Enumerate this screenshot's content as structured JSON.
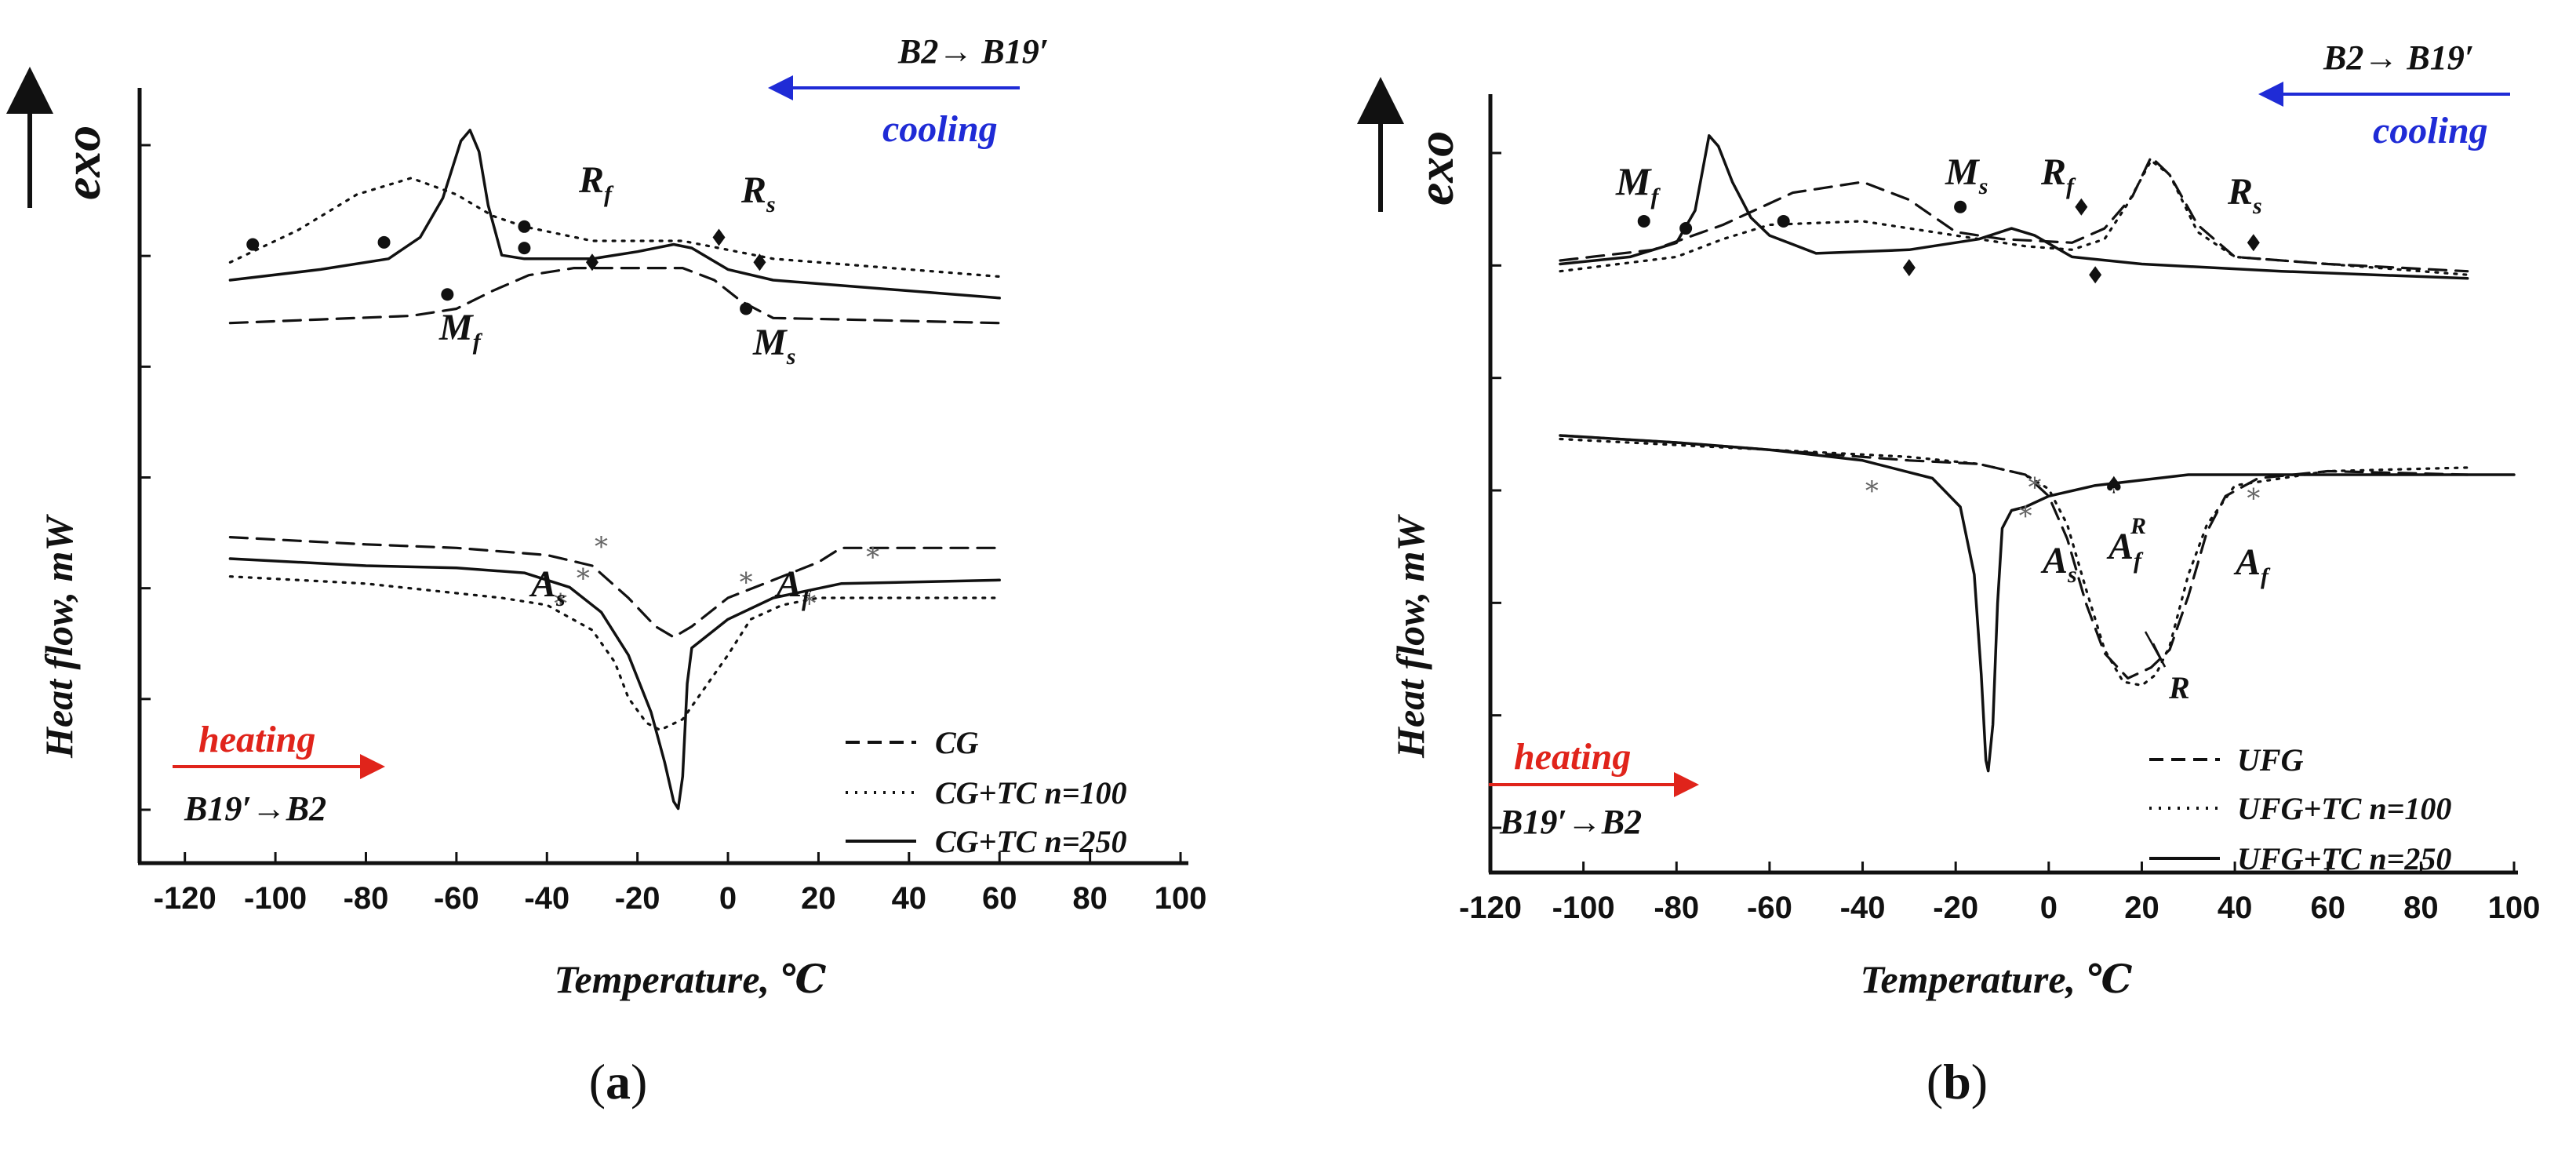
{
  "chart_data": [
    {
      "type": "line",
      "panel": "a",
      "caption_letter": "a",
      "title": "",
      "xlabel": "Temperature, ℃",
      "ylabel": "Heat flow, mW",
      "exo_label": "exo",
      "xlim": [
        -130,
        100
      ],
      "xticks": [
        -120,
        -100,
        -80,
        -60,
        -40,
        -20,
        0,
        20,
        40,
        60,
        80,
        100
      ],
      "ytick_count": 7,
      "ylim": [
        0,
        10
      ],
      "grid": false,
      "legend_position": "bottom-right",
      "cooling_arrow": {
        "label": "B2→ B19′",
        "word": "cooling",
        "color": "#1f2bd6",
        "direction": "left"
      },
      "heating_arrow": {
        "label": "B19′→B2",
        "word": "heating",
        "color": "#e0241b",
        "direction": "right"
      },
      "series": [
        {
          "name": "CG",
          "style": "dashed",
          "cooling": [
            [
              -110,
              6.85
            ],
            [
              -90,
              6.9
            ],
            [
              -70,
              6.95
            ],
            [
              -60,
              7.05
            ],
            [
              -52,
              7.3
            ],
            [
              -44,
              7.52
            ],
            [
              -34,
              7.62
            ],
            [
              -20,
              7.62
            ],
            [
              -10,
              7.62
            ],
            [
              -3,
              7.45
            ],
            [
              3,
              7.15
            ],
            [
              10,
              6.92
            ],
            [
              25,
              6.9
            ],
            [
              60,
              6.85
            ]
          ],
          "heating": [
            [
              -110,
              3.85
            ],
            [
              -80,
              3.75
            ],
            [
              -60,
              3.7
            ],
            [
              -40,
              3.6
            ],
            [
              -30,
              3.45
            ],
            [
              -22,
              3.0
            ],
            [
              -16,
              2.6
            ],
            [
              -12,
              2.45
            ],
            [
              -8,
              2.6
            ],
            [
              0,
              3.0
            ],
            [
              10,
              3.25
            ],
            [
              20,
              3.5
            ],
            [
              25,
              3.7
            ],
            [
              35,
              3.7
            ],
            [
              60,
              3.7
            ]
          ]
        },
        {
          "name": "CG+TC n=100",
          "style": "dotted",
          "cooling": [
            [
              -110,
              7.7
            ],
            [
              -95,
              8.15
            ],
            [
              -82,
              8.65
            ],
            [
              -70,
              8.88
            ],
            [
              -60,
              8.65
            ],
            [
              -52,
              8.35
            ],
            [
              -45,
              8.2
            ],
            [
              -30,
              8.0
            ],
            [
              -10,
              8.0
            ],
            [
              10,
              7.75
            ],
            [
              40,
              7.6
            ],
            [
              60,
              7.5
            ]
          ],
          "heating": [
            [
              -110,
              3.3
            ],
            [
              -80,
              3.2
            ],
            [
              -50,
              3.0
            ],
            [
              -40,
              2.9
            ],
            [
              -30,
              2.55
            ],
            [
              -25,
              2.1
            ],
            [
              -22,
              1.6
            ],
            [
              -18,
              1.25
            ],
            [
              -15,
              1.15
            ],
            [
              -10,
              1.3
            ],
            [
              0,
              2.2
            ],
            [
              5,
              2.7
            ],
            [
              12,
              2.9
            ],
            [
              20,
              3.0
            ],
            [
              60,
              3.0
            ]
          ]
        },
        {
          "name": "CG+TC n=250",
          "style": "solid",
          "cooling": [
            [
              -110,
              7.45
            ],
            [
              -90,
              7.6
            ],
            [
              -75,
              7.75
            ],
            [
              -68,
              8.05
            ],
            [
              -63,
              8.6
            ],
            [
              -59,
              9.4
            ],
            [
              -57,
              9.55
            ],
            [
              -55,
              9.25
            ],
            [
              -53,
              8.5
            ],
            [
              -50,
              7.8
            ],
            [
              -45,
              7.75
            ],
            [
              -30,
              7.75
            ],
            [
              -20,
              7.85
            ],
            [
              -12,
              7.95
            ],
            [
              -8,
              7.9
            ],
            [
              0,
              7.6
            ],
            [
              10,
              7.45
            ],
            [
              30,
              7.35
            ],
            [
              60,
              7.2
            ]
          ],
          "heating": [
            [
              -110,
              3.55
            ],
            [
              -80,
              3.45
            ],
            [
              -60,
              3.42
            ],
            [
              -45,
              3.35
            ],
            [
              -35,
              3.15
            ],
            [
              -28,
              2.8
            ],
            [
              -22,
              2.2
            ],
            [
              -17,
              1.4
            ],
            [
              -14,
              0.7
            ],
            [
              -12,
              0.15
            ],
            [
              -11,
              0.05
            ],
            [
              -10,
              0.5
            ],
            [
              -9,
              1.8
            ],
            [
              -8,
              2.3
            ],
            [
              0,
              2.7
            ],
            [
              10,
              3.0
            ],
            [
              25,
              3.2
            ],
            [
              60,
              3.25
            ]
          ]
        }
      ],
      "point_labels": [
        {
          "text": "M",
          "sub": "f",
          "near": [
            -62,
            6.4
          ]
        },
        {
          "text": "R",
          "sub": "f",
          "near": [
            -28,
            8.3
          ]
        },
        {
          "text": "R",
          "sub": "s",
          "near": [
            5,
            8.3
          ]
        },
        {
          "text": "M",
          "sub": "s",
          "near": [
            10,
            6.2
          ]
        },
        {
          "text": "A",
          "sub": "s",
          "near": [
            -38,
            2.1
          ]
        },
        {
          "text": "A",
          "sub": "f",
          "near": [
            15,
            2.1
          ]
        }
      ],
      "markers": {
        "dots": [
          [
            -105,
            7.95
          ],
          [
            -76,
            7.98
          ],
          [
            -45,
            8.2
          ],
          [
            -45,
            7.9
          ],
          [
            -62,
            7.25
          ],
          [
            4,
            7.05
          ]
        ],
        "diamonds": [
          [
            -2,
            8.05
          ],
          [
            -30,
            7.7
          ],
          [
            7,
            7.7
          ]
        ],
        "stars": [
          [
            -28,
            3.75
          ],
          [
            -32,
            3.3
          ],
          [
            -37,
            2.95
          ],
          [
            4,
            3.25
          ],
          [
            18,
            2.95
          ],
          [
            32,
            3.6
          ]
        ]
      },
      "legend": [
        "CG",
        "CG+TC n=100",
        "CG+TC n=250"
      ]
    },
    {
      "type": "line",
      "panel": "b",
      "caption_letter": "b",
      "title": "",
      "xlabel": "Temperature, ℃",
      "ylabel": "Heat flow, mW",
      "exo_label": "exo",
      "xlim": [
        -120,
        100
      ],
      "xticks": [
        -120,
        -100,
        -80,
        -60,
        -40,
        -20,
        0,
        20,
        40,
        60,
        80,
        100
      ],
      "ytick_count": 7,
      "ylim": [
        0,
        10
      ],
      "grid": false,
      "legend_position": "bottom-right",
      "cooling_arrow": {
        "label": "B2→ B19′",
        "word": "cooling",
        "color": "#1f2bd6",
        "direction": "left"
      },
      "heating_arrow": {
        "label": "B19′→B2",
        "word": "heating",
        "color": "#e0241b",
        "direction": "right"
      },
      "series": [
        {
          "name": "UFG",
          "style": "dashed",
          "cooling": [
            [
              -105,
              8.0
            ],
            [
              -85,
              8.15
            ],
            [
              -70,
              8.5
            ],
            [
              -55,
              8.95
            ],
            [
              -40,
              9.1
            ],
            [
              -30,
              8.85
            ],
            [
              -20,
              8.4
            ],
            [
              -10,
              8.3
            ],
            [
              5,
              8.25
            ],
            [
              12,
              8.45
            ],
            [
              18,
              8.9
            ],
            [
              22,
              9.45
            ],
            [
              26,
              9.2
            ],
            [
              32,
              8.5
            ],
            [
              40,
              8.05
            ],
            [
              60,
              7.95
            ],
            [
              90,
              7.85
            ]
          ],
          "heating": [
            [
              -105,
              5.55
            ],
            [
              -80,
              5.45
            ],
            [
              -50,
              5.3
            ],
            [
              -30,
              5.2
            ],
            [
              -15,
              5.15
            ],
            [
              -5,
              5.0
            ],
            [
              0,
              4.7
            ],
            [
              4,
              4.1
            ],
            [
              8,
              3.2
            ],
            [
              12,
              2.5
            ],
            [
              17,
              2.15
            ],
            [
              22,
              2.3
            ],
            [
              26,
              2.55
            ],
            [
              30,
              3.3
            ],
            [
              34,
              4.2
            ],
            [
              38,
              4.7
            ],
            [
              45,
              4.95
            ],
            [
              60,
              5.05
            ],
            [
              90,
              5.0
            ]
          ]
        },
        {
          "name": "UFG+TC n=100",
          "style": "dotted",
          "cooling": [
            [
              -105,
              7.85
            ],
            [
              -80,
              8.05
            ],
            [
              -70,
              8.3
            ],
            [
              -60,
              8.5
            ],
            [
              -40,
              8.55
            ],
            [
              -20,
              8.35
            ],
            [
              -5,
              8.2
            ],
            [
              5,
              8.15
            ],
            [
              12,
              8.3
            ],
            [
              17,
              8.8
            ],
            [
              22,
              9.4
            ],
            [
              26,
              9.2
            ],
            [
              32,
              8.4
            ],
            [
              40,
              8.05
            ],
            [
              60,
              7.95
            ],
            [
              90,
              7.8
            ]
          ],
          "heating": [
            [
              -105,
              5.5
            ],
            [
              -60,
              5.35
            ],
            [
              -30,
              5.25
            ],
            [
              -15,
              5.15
            ],
            [
              -5,
              5.0
            ],
            [
              0,
              4.8
            ],
            [
              4,
              4.3
            ],
            [
              8,
              3.4
            ],
            [
              12,
              2.55
            ],
            [
              16,
              2.1
            ],
            [
              20,
              2.05
            ],
            [
              23,
              2.2
            ],
            [
              26,
              2.6
            ],
            [
              30,
              3.6
            ],
            [
              34,
              4.3
            ],
            [
              40,
              4.85
            ],
            [
              60,
              5.05
            ],
            [
              90,
              5.1
            ]
          ]
        },
        {
          "name": "UFG+TC n=250",
          "style": "solid",
          "cooling": [
            [
              -105,
              7.95
            ],
            [
              -90,
              8.05
            ],
            [
              -80,
              8.25
            ],
            [
              -76,
              8.7
            ],
            [
              -73,
              9.75
            ],
            [
              -71,
              9.6
            ],
            [
              -68,
              9.1
            ],
            [
              -64,
              8.6
            ],
            [
              -60,
              8.35
            ],
            [
              -50,
              8.1
            ],
            [
              -30,
              8.15
            ],
            [
              -15,
              8.3
            ],
            [
              -8,
              8.45
            ],
            [
              -3,
              8.35
            ],
            [
              5,
              8.05
            ],
            [
              20,
              7.95
            ],
            [
              50,
              7.85
            ],
            [
              90,
              7.75
            ]
          ],
          "heating": [
            [
              -105,
              5.55
            ],
            [
              -80,
              5.45
            ],
            [
              -60,
              5.35
            ],
            [
              -40,
              5.2
            ],
            [
              -25,
              4.95
            ],
            [
              -19,
              4.55
            ],
            [
              -16,
              3.6
            ],
            [
              -14.5,
              2.2
            ],
            [
              -13.5,
              1.0
            ],
            [
              -13,
              0.85
            ],
            [
              -12,
              1.5
            ],
            [
              -11,
              3.2
            ],
            [
              -10,
              4.25
            ],
            [
              -8,
              4.5
            ],
            [
              -5,
              4.55
            ],
            [
              0,
              4.7
            ],
            [
              10,
              4.85
            ],
            [
              30,
              5.0
            ],
            [
              100,
              5.0
            ]
          ]
        }
      ],
      "point_labels": [
        {
          "text": "M",
          "sub": "f",
          "near": [
            -86,
            9.2
          ]
        },
        {
          "text": "M",
          "sub": "s",
          "near": [
            -17,
            9.4
          ]
        },
        {
          "text": "R",
          "sub": "f",
          "near": [
            -1,
            9.4
          ]
        },
        {
          "text": "R",
          "sub": "s",
          "near": [
            42,
            8.8
          ]
        },
        {
          "text": "A",
          "sub": "s",
          "near": [
            4,
            4.5
          ]
        },
        {
          "text": "A",
          "sub": "f",
          "near": [
            16,
            4.5
          ],
          "sup": "R"
        },
        {
          "text": "A",
          "sub": "f",
          "near": [
            44,
            4.3
          ]
        },
        {
          "text": "R",
          "near": [
            23,
            1.6
          ]
        }
      ],
      "markers": {
        "dots": [
          [
            -87,
            8.55
          ],
          [
            -78,
            8.45
          ],
          [
            -57,
            8.55
          ],
          [
            -19,
            8.75
          ]
        ],
        "diamonds": [
          [
            7,
            8.75
          ],
          [
            -30,
            7.9
          ],
          [
            10,
            7.8
          ],
          [
            44,
            8.25
          ]
        ],
        "stars": [
          [
            -38,
            4.8
          ],
          [
            -3,
            4.85
          ],
          [
            -5,
            4.45
          ],
          [
            44,
            4.7
          ]
        ],
        "spades": [
          [
            14,
            4.85
          ]
        ]
      },
      "legend": [
        "UFG",
        "UFG+TC n=100",
        "UFG+TC n=250"
      ]
    }
  ]
}
